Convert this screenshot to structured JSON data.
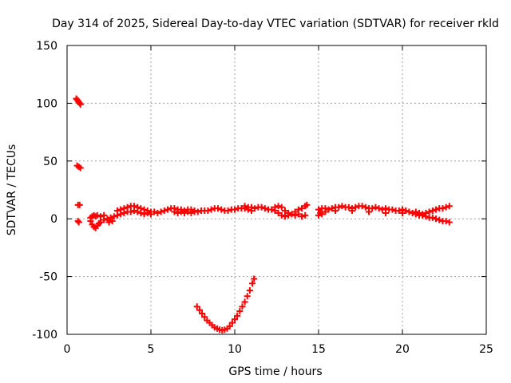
{
  "chart_data": {
    "type": "scatter",
    "title": "Day 314 of 2025, Sidereal Day-to-day VTEC variation (SDTVAR) for receiver rkld",
    "xlabel": "GPS time / hours",
    "ylabel": "SDTVAR / TECUs",
    "xlim": [
      0,
      25
    ],
    "ylim": [
      -100,
      150
    ],
    "xticks": [
      0,
      5,
      10,
      15,
      20,
      25
    ],
    "yticks": [
      -100,
      -50,
      0,
      50,
      100,
      150
    ],
    "grid": true,
    "marker": "plus",
    "color": "#ff0000",
    "series": [
      {
        "points": [
          [
            0.55,
            104
          ],
          [
            0.6,
            103
          ],
          [
            0.65,
            102
          ],
          [
            0.7,
            101
          ],
          [
            0.75,
            100
          ],
          [
            0.8,
            99
          ],
          [
            0.6,
            46
          ],
          [
            0.7,
            45
          ],
          [
            0.8,
            44
          ],
          [
            0.65,
            12
          ],
          [
            0.75,
            12
          ],
          [
            0.65,
            -2
          ],
          [
            0.7,
            -3
          ],
          [
            1.4,
            -2
          ],
          [
            1.5,
            -5
          ],
          [
            1.6,
            -7
          ],
          [
            1.7,
            -8
          ],
          [
            1.8,
            -6
          ],
          [
            1.9,
            -4
          ],
          [
            1.4,
            1
          ],
          [
            1.5,
            2
          ],
          [
            1.6,
            3
          ],
          [
            1.7,
            2
          ],
          [
            1.8,
            3
          ],
          [
            2.0,
            2
          ],
          [
            2.2,
            3
          ],
          [
            2.0,
            -3
          ],
          [
            2.2,
            -1
          ],
          [
            2.4,
            0
          ],
          [
            2.6,
            1
          ],
          [
            2.8,
            2
          ],
          [
            2.5,
            -3
          ],
          [
            2.7,
            -2
          ],
          [
            3.0,
            3
          ],
          [
            3.2,
            4
          ],
          [
            3.4,
            5
          ],
          [
            3.6,
            6
          ],
          [
            3.8,
            6
          ],
          [
            4.0,
            7
          ],
          [
            4.2,
            6
          ],
          [
            3.0,
            7
          ],
          [
            3.2,
            8
          ],
          [
            3.4,
            9
          ],
          [
            3.6,
            10
          ],
          [
            3.8,
            11
          ],
          [
            4.0,
            11
          ],
          [
            4.2,
            10
          ],
          [
            4.4,
            9
          ],
          [
            4.6,
            8
          ],
          [
            4.8,
            7
          ],
          [
            5.0,
            6
          ],
          [
            5.2,
            6
          ],
          [
            5.4,
            5
          ],
          [
            5.6,
            6
          ],
          [
            4.4,
            5
          ],
          [
            4.6,
            4
          ],
          [
            4.8,
            5
          ],
          [
            5.0,
            4
          ],
          [
            5.8,
            7
          ],
          [
            6.0,
            8
          ],
          [
            6.2,
            9
          ],
          [
            6.4,
            9
          ],
          [
            6.6,
            8
          ],
          [
            6.8,
            8
          ],
          [
            7.0,
            7
          ],
          [
            7.2,
            8
          ],
          [
            7.4,
            8
          ],
          [
            7.6,
            7
          ],
          [
            6.4,
            6
          ],
          [
            6.6,
            5
          ],
          [
            6.8,
            6
          ],
          [
            7.0,
            5
          ],
          [
            7.2,
            6
          ],
          [
            7.4,
            5
          ],
          [
            7.6,
            6
          ],
          [
            7.8,
            6
          ],
          [
            8.0,
            7
          ],
          [
            8.2,
            7
          ],
          [
            8.4,
            7
          ],
          [
            8.6,
            8
          ],
          [
            8.8,
            9
          ],
          [
            9.0,
            9
          ],
          [
            9.2,
            8
          ],
          [
            9.4,
            7
          ],
          [
            9.6,
            7
          ],
          [
            9.8,
            8
          ],
          [
            10.0,
            8
          ],
          [
            10.2,
            9
          ],
          [
            10.4,
            9
          ],
          [
            10.6,
            9
          ],
          [
            10.8,
            8
          ],
          [
            11.0,
            7
          ],
          [
            11.2,
            9
          ],
          [
            11.4,
            10
          ],
          [
            11.6,
            10
          ],
          [
            10.6,
            11
          ],
          [
            10.8,
            10
          ],
          [
            11.0,
            10
          ],
          [
            11.8,
            9
          ],
          [
            12.0,
            8
          ],
          [
            12.2,
            8
          ],
          [
            12.4,
            7
          ],
          [
            12.6,
            5
          ],
          [
            12.8,
            3
          ],
          [
            13.0,
            2
          ],
          [
            13.2,
            3
          ],
          [
            13.4,
            4
          ],
          [
            12.4,
            10
          ],
          [
            12.6,
            11
          ],
          [
            12.8,
            10
          ],
          [
            13.0,
            7
          ],
          [
            13.2,
            5
          ],
          [
            13.6,
            3
          ],
          [
            13.6,
            6
          ],
          [
            13.8,
            8
          ],
          [
            14.0,
            9
          ],
          [
            14.2,
            11
          ],
          [
            14.3,
            12
          ],
          [
            13.8,
            4
          ],
          [
            14.0,
            2
          ],
          [
            14.2,
            3
          ],
          [
            15.0,
            3
          ],
          [
            15.1,
            5
          ],
          [
            15.2,
            4
          ],
          [
            15.0,
            8
          ],
          [
            15.2,
            9
          ],
          [
            15.4,
            9
          ],
          [
            15.6,
            8
          ],
          [
            15.8,
            9
          ],
          [
            16.0,
            10
          ],
          [
            16.2,
            10
          ],
          [
            16.4,
            11
          ],
          [
            16.6,
            10
          ],
          [
            16.8,
            10
          ],
          [
            17.0,
            9
          ],
          [
            17.2,
            10
          ],
          [
            17.4,
            11
          ],
          [
            17.6,
            11
          ],
          [
            17.8,
            10
          ],
          [
            18.0,
            9
          ],
          [
            18.2,
            9
          ],
          [
            18.4,
            10
          ],
          [
            18.6,
            9
          ],
          [
            18.8,
            8
          ],
          [
            19.0,
            9
          ],
          [
            19.2,
            8
          ],
          [
            19.4,
            8
          ],
          [
            19.6,
            7
          ],
          [
            19.8,
            7
          ],
          [
            20.0,
            8
          ],
          [
            20.2,
            7
          ],
          [
            20.4,
            6
          ],
          [
            20.6,
            5
          ],
          [
            15.4,
            6
          ],
          [
            16.0,
            7
          ],
          [
            17.0,
            7
          ],
          [
            18.0,
            6
          ],
          [
            19.0,
            5
          ],
          [
            20.0,
            5
          ],
          [
            20.8,
            4
          ],
          [
            21.0,
            3
          ],
          [
            21.2,
            4
          ],
          [
            21.4,
            5
          ],
          [
            21.6,
            6
          ],
          [
            21.8,
            7
          ],
          [
            22.0,
            8
          ],
          [
            22.2,
            9
          ],
          [
            22.4,
            9
          ],
          [
            22.6,
            10
          ],
          [
            22.8,
            11
          ],
          [
            20.8,
            6
          ],
          [
            21.0,
            5
          ],
          [
            21.2,
            3
          ],
          [
            21.4,
            2
          ],
          [
            21.6,
            1
          ],
          [
            21.8,
            1
          ],
          [
            22.0,
            0
          ],
          [
            22.2,
            -1
          ],
          [
            22.4,
            -2
          ],
          [
            22.6,
            -2
          ],
          [
            22.8,
            -3
          ],
          [
            7.75,
            -76
          ],
          [
            7.9,
            -79
          ],
          [
            8.05,
            -82
          ],
          [
            8.2,
            -85
          ],
          [
            8.35,
            -88
          ],
          [
            8.5,
            -90
          ],
          [
            8.65,
            -92
          ],
          [
            8.8,
            -94
          ],
          [
            8.95,
            -95
          ],
          [
            9.1,
            -96
          ],
          [
            9.25,
            -96.5
          ],
          [
            9.4,
            -96
          ],
          [
            9.55,
            -95
          ],
          [
            9.7,
            -93
          ],
          [
            9.85,
            -90
          ],
          [
            10.0,
            -87
          ],
          [
            10.15,
            -84
          ],
          [
            10.3,
            -80
          ],
          [
            10.45,
            -76
          ],
          [
            10.6,
            -72
          ],
          [
            10.75,
            -67
          ],
          [
            10.9,
            -62
          ],
          [
            11.05,
            -56
          ],
          [
            11.15,
            -52
          ]
        ]
      }
    ]
  }
}
